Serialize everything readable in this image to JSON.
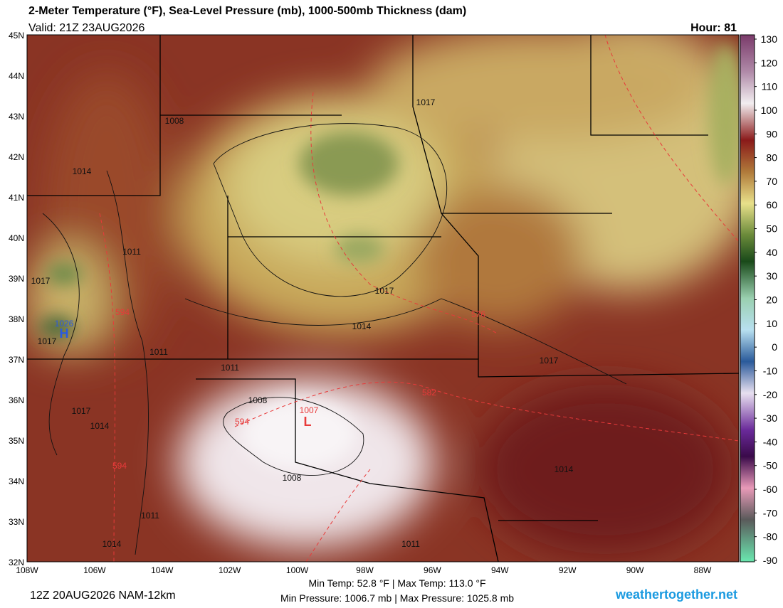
{
  "header": {
    "title": "2-Meter Temperature (°F), Sea-Level Pressure (mb), 1000-500mb Thickness (dam)",
    "valid": "Valid: 21Z 23AUG2026",
    "hour": "Hour: 81"
  },
  "map": {
    "lat_labels": [
      "45N",
      "44N",
      "43N",
      "42N",
      "41N",
      "40N",
      "39N",
      "38N",
      "37N",
      "36N",
      "35N",
      "34N",
      "33N",
      "32N"
    ],
    "lon_labels": [
      "108W",
      "106W",
      "104W",
      "102W",
      "100W",
      "98W",
      "96W",
      "94W",
      "92W",
      "90W",
      "88W"
    ],
    "contour_labels": [
      "1008",
      "1014",
      "1011",
      "1017",
      "1017",
      "1014",
      "576",
      "594",
      "1026",
      "H",
      "1017",
      "1011",
      "1011",
      "1017",
      "582",
      "1008",
      "1007",
      "L",
      "594",
      "1017",
      "1014",
      "594",
      "1008",
      "1014",
      "1011",
      "1014",
      "1011",
      "1017"
    ]
  },
  "colorbar": {
    "ticks": [
      130,
      120,
      110,
      100,
      90,
      80,
      70,
      60,
      50,
      40,
      30,
      20,
      10,
      0,
      -10,
      -20,
      -30,
      -40,
      -50,
      -60,
      -70,
      -80,
      -90
    ]
  },
  "footer": {
    "run": "12Z 20AUG2026 NAM-12km",
    "temp_range": "Min Temp:  52.8 °F | Max Temp: 113.0 °F",
    "pressure_range": "Min Pressure: 1006.7 mb | Max Pressure: 1025.8 mb",
    "site": "weathertogether.net"
  }
}
